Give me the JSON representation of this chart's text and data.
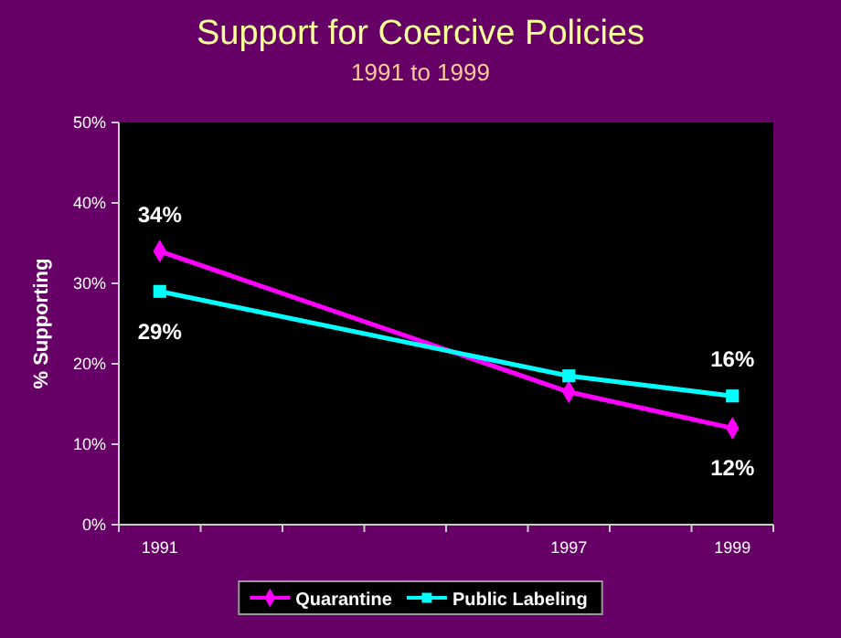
{
  "chart_data": {
    "type": "line",
    "title": "Support for Coercive Policies",
    "subtitle": "1991 to 1999",
    "ylabel": "% Supporting",
    "categories": [
      "1991",
      null,
      null,
      null,
      null,
      "1997",
      null,
      "1999"
    ],
    "series": [
      {
        "name": "Quarantine",
        "color": "#ff00ff",
        "marker": "diamond",
        "values": [
          34,
          null,
          null,
          null,
          null,
          16.5,
          null,
          12
        ],
        "value_labels": [
          "34%",
          null,
          null,
          null,
          null,
          null,
          null,
          "12%"
        ]
      },
      {
        "name": "Public Labeling",
        "color": "#00ffff",
        "marker": "square",
        "values": [
          29,
          null,
          null,
          null,
          null,
          18.5,
          null,
          16
        ],
        "value_labels": [
          "29%",
          null,
          null,
          null,
          null,
          null,
          null,
          "16%"
        ]
      }
    ],
    "ylim": [
      0,
      50
    ],
    "yticks": [
      {
        "value": 0,
        "label": "0%"
      },
      {
        "value": 10,
        "label": "10%"
      },
      {
        "value": 20,
        "label": "20%"
      },
      {
        "value": 30,
        "label": "30%"
      },
      {
        "value": 40,
        "label": "40%"
      },
      {
        "value": 50,
        "label": "50%"
      }
    ],
    "grid": false,
    "legend": "bottom"
  }
}
